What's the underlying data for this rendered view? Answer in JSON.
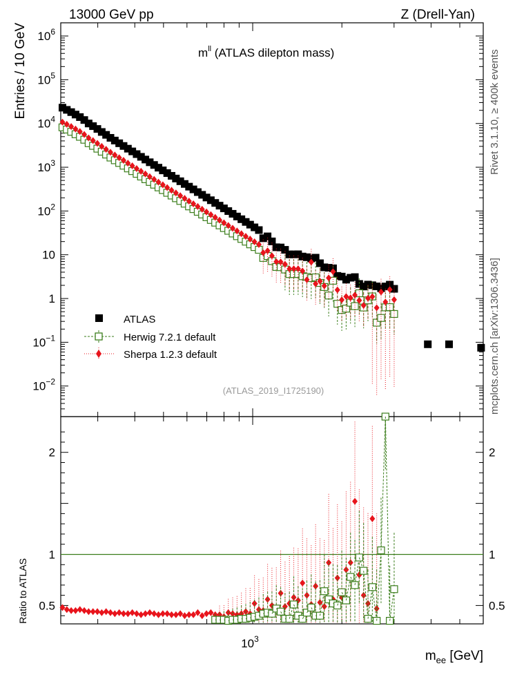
{
  "header": {
    "left": "13000 GeV pp",
    "right": "Z (Drell-Yan)"
  },
  "side_text": {
    "top": "Rivet 3.1.10, ≥ 400k events",
    "bottom": "mcplots.cern.ch [arXiv:1306.3436]"
  },
  "plot": {
    "title_main": "m",
    "title_sup": "ll",
    "title_rest": " (ATLAS dilepton mass)",
    "analysis_id": "(ATLAS_2019_I1725190)",
    "ylabel_top": "Entries / 10 GeV",
    "ylabel_bottom": "Ratio to ATLAS",
    "xlabel_main": "m",
    "xlabel_sub": "ee",
    "xlabel_unit": " [GeV]"
  },
  "legend": {
    "items": [
      {
        "label": "ATLAS",
        "color": "#000000",
        "marker": "square"
      },
      {
        "label": "Herwig 7.2.1 default",
        "color": "#3a7d1a",
        "marker": "open-square"
      },
      {
        "label": "Sherpa 1.2.3 default",
        "color": "#e8141c",
        "marker": "diamond"
      }
    ]
  },
  "colors": {
    "atlas": "#000000",
    "herwig": "#3a7d1a",
    "sherpa": "#e8141c"
  },
  "chart_data": [
    {
      "type": "scatter",
      "panel": "main",
      "title": "mll (ATLAS dilepton mass)",
      "xlabel": "m_ee [GeV]",
      "ylabel": "Entries / 10 GeV",
      "xscale": "log",
      "yscale": "log",
      "xlim": [
        225,
        6000
      ],
      "ylim": [
        0.002,
        2000000
      ],
      "ytick_labels": [
        {
          "value": 1000000,
          "base": "10",
          "exp": "6"
        },
        {
          "value": 100000,
          "base": "10",
          "exp": "5"
        },
        {
          "value": 10000,
          "base": "10",
          "exp": "4"
        },
        {
          "value": 1000,
          "base": "10",
          "exp": "3"
        },
        {
          "value": 100,
          "base": "10",
          "exp": "2"
        },
        {
          "value": 10,
          "base": "10",
          "exp": ""
        },
        {
          "value": 1,
          "base": "1",
          "exp": ""
        },
        {
          "value": 0.1,
          "base": "10",
          "exp": "−1"
        },
        {
          "value": 0.01,
          "base": "10",
          "exp": "−2"
        }
      ],
      "xtick_labels": [
        {
          "value": 1000,
          "base": "10",
          "exp": "3"
        }
      ],
      "atlas_start_values": [
        23000,
        20500,
        18200,
        16000,
        14000,
        12000,
        10000,
        8700,
        7500,
        6400,
        5500,
        4700
      ],
      "atlas_decay_dex_per_bin": 0.062,
      "herwig_offset_dex": -0.45,
      "sherpa_offset_dex": -0.33,
      "series": [
        {
          "name": "ATLAS",
          "marker": "square",
          "color": "#000000"
        },
        {
          "name": "Herwig 7.2.1 default",
          "marker": "open-square",
          "color": "#3a7d1a"
        },
        {
          "name": "Sherpa 1.2.3 default",
          "marker": "diamond",
          "color": "#e8141c"
        }
      ]
    },
    {
      "type": "scatter",
      "panel": "ratio",
      "ylabel": "Ratio to ATLAS",
      "xscale": "log",
      "xlim": [
        225,
        6000
      ],
      "ylim": [
        0.32,
        2.35
      ],
      "ytick_labels": [
        {
          "value": 0.5,
          "label": "0.5"
        },
        {
          "value": 1,
          "label": "1"
        },
        {
          "value": 2,
          "label": "2"
        }
      ],
      "reference_line": 1,
      "herwig_ratios": [
        0.36,
        0.36,
        0.36,
        0.35,
        0.36,
        0.36,
        0.37,
        0.37,
        0.38,
        0.39,
        0.4,
        0.42,
        0.43,
        0.42,
        0.47,
        0.44,
        0.37,
        0.37,
        0.51,
        0.4,
        0.37,
        0.43,
        0.48,
        0.4,
        0.4,
        0.64,
        0.56,
        0.52,
        0.5,
        0.63,
        0.55,
        0.78,
        0.7,
        0.97,
        0.84,
        0.37,
        0.68,
        0.35,
        1.04,
        2.35,
        0.35,
        0.66
      ],
      "sherpa_ratios": [
        0.48,
        0.46,
        0.45,
        0.45,
        0.46,
        0.45,
        0.44,
        0.44,
        0.44,
        0.43,
        0.44,
        0.43,
        0.42,
        0.43,
        0.42,
        0.42,
        0.43,
        0.42,
        0.41,
        0.42,
        0.43,
        0.42,
        0.41,
        0.42,
        0.42,
        0.41,
        0.41,
        0.42,
        0.4,
        0.41,
        0.41,
        0.43,
        0.4,
        0.42,
        0.43,
        0.41,
        0.41,
        0.39,
        0.43,
        0.42,
        0.41,
        0.42,
        0.44,
        0.42,
        0.52,
        0.46,
        0.45,
        0.56,
        0.5,
        0.48,
        0.62,
        0.49,
        0.52,
        0.58,
        0.55,
        0.72,
        0.6,
        0.51,
        0.69,
        0.53,
        0.49,
        0.92,
        0.56,
        0.77,
        0.58,
        0.85,
        0.92,
        1.52,
        0.8,
        0.6,
        0.52,
        1.35,
        0.47
      ]
    }
  ]
}
